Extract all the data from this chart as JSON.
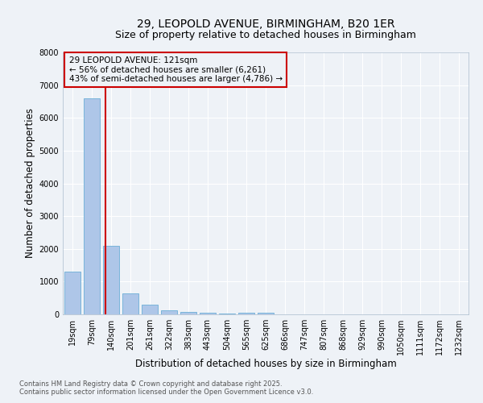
{
  "title1": "29, LEOPOLD AVENUE, BIRMINGHAM, B20 1ER",
  "title2": "Size of property relative to detached houses in Birmingham",
  "xlabel": "Distribution of detached houses by size in Birmingham",
  "ylabel": "Number of detached properties",
  "categories": [
    "19sqm",
    "79sqm",
    "140sqm",
    "201sqm",
    "261sqm",
    "322sqm",
    "383sqm",
    "443sqm",
    "504sqm",
    "565sqm",
    "625sqm",
    "686sqm",
    "747sqm",
    "807sqm",
    "868sqm",
    "929sqm",
    "990sqm",
    "1050sqm",
    "1111sqm",
    "1172sqm",
    "1232sqm"
  ],
  "values": [
    1300,
    6600,
    2100,
    650,
    300,
    130,
    80,
    40,
    20,
    50,
    50,
    0,
    0,
    0,
    0,
    0,
    0,
    0,
    0,
    0,
    0
  ],
  "bar_color": "#aec6e8",
  "bar_edge_color": "#6baed6",
  "property_line_color": "#cc0000",
  "annotation_text": "29 LEOPOLD AVENUE: 121sqm\n← 56% of detached houses are smaller (6,261)\n43% of semi-detached houses are larger (4,786) →",
  "annotation_box_color": "#cc0000",
  "ylim": [
    0,
    8000
  ],
  "yticks": [
    0,
    1000,
    2000,
    3000,
    4000,
    5000,
    6000,
    7000,
    8000
  ],
  "footnote1": "Contains HM Land Registry data © Crown copyright and database right 2025.",
  "footnote2": "Contains public sector information licensed under the Open Government Licence v3.0.",
  "background_color": "#eef2f7",
  "grid_color": "#ffffff",
  "title_fontsize": 10,
  "subtitle_fontsize": 9,
  "axis_label_fontsize": 8.5,
  "tick_fontsize": 7,
  "annotation_fontsize": 7.5,
  "footnote_fontsize": 6
}
